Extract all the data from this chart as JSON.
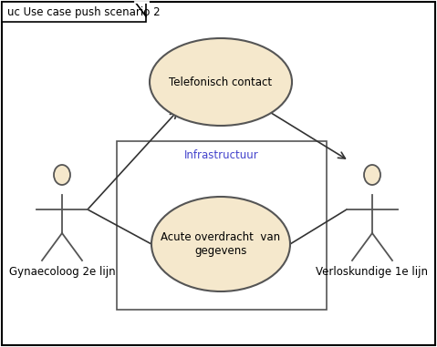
{
  "title": "uc Use case push scenario 2",
  "bg_color": "#ffffff",
  "border_color": "#000000",
  "ellipse_fill": "#f5e8cc",
  "ellipse_edge": "#555555",
  "actor_fill": "#f5e8cc",
  "actor_edge": "#555555",
  "box_fill": "#ffffff",
  "box_edge": "#555555",
  "box_label": "Infrastructuur",
  "box_label_color": "#4444cc",
  "telefonisch_label": "Telefonisch contact",
  "acute_label": "Acute overdracht  van\ngegevens",
  "actor1_label": "Gynaecoloog 2e lijn",
  "actor2_label": "Verloskundige 1e lijn",
  "text_color": "#000000",
  "label_fontsize": 8.5,
  "title_fontsize": 8.5
}
